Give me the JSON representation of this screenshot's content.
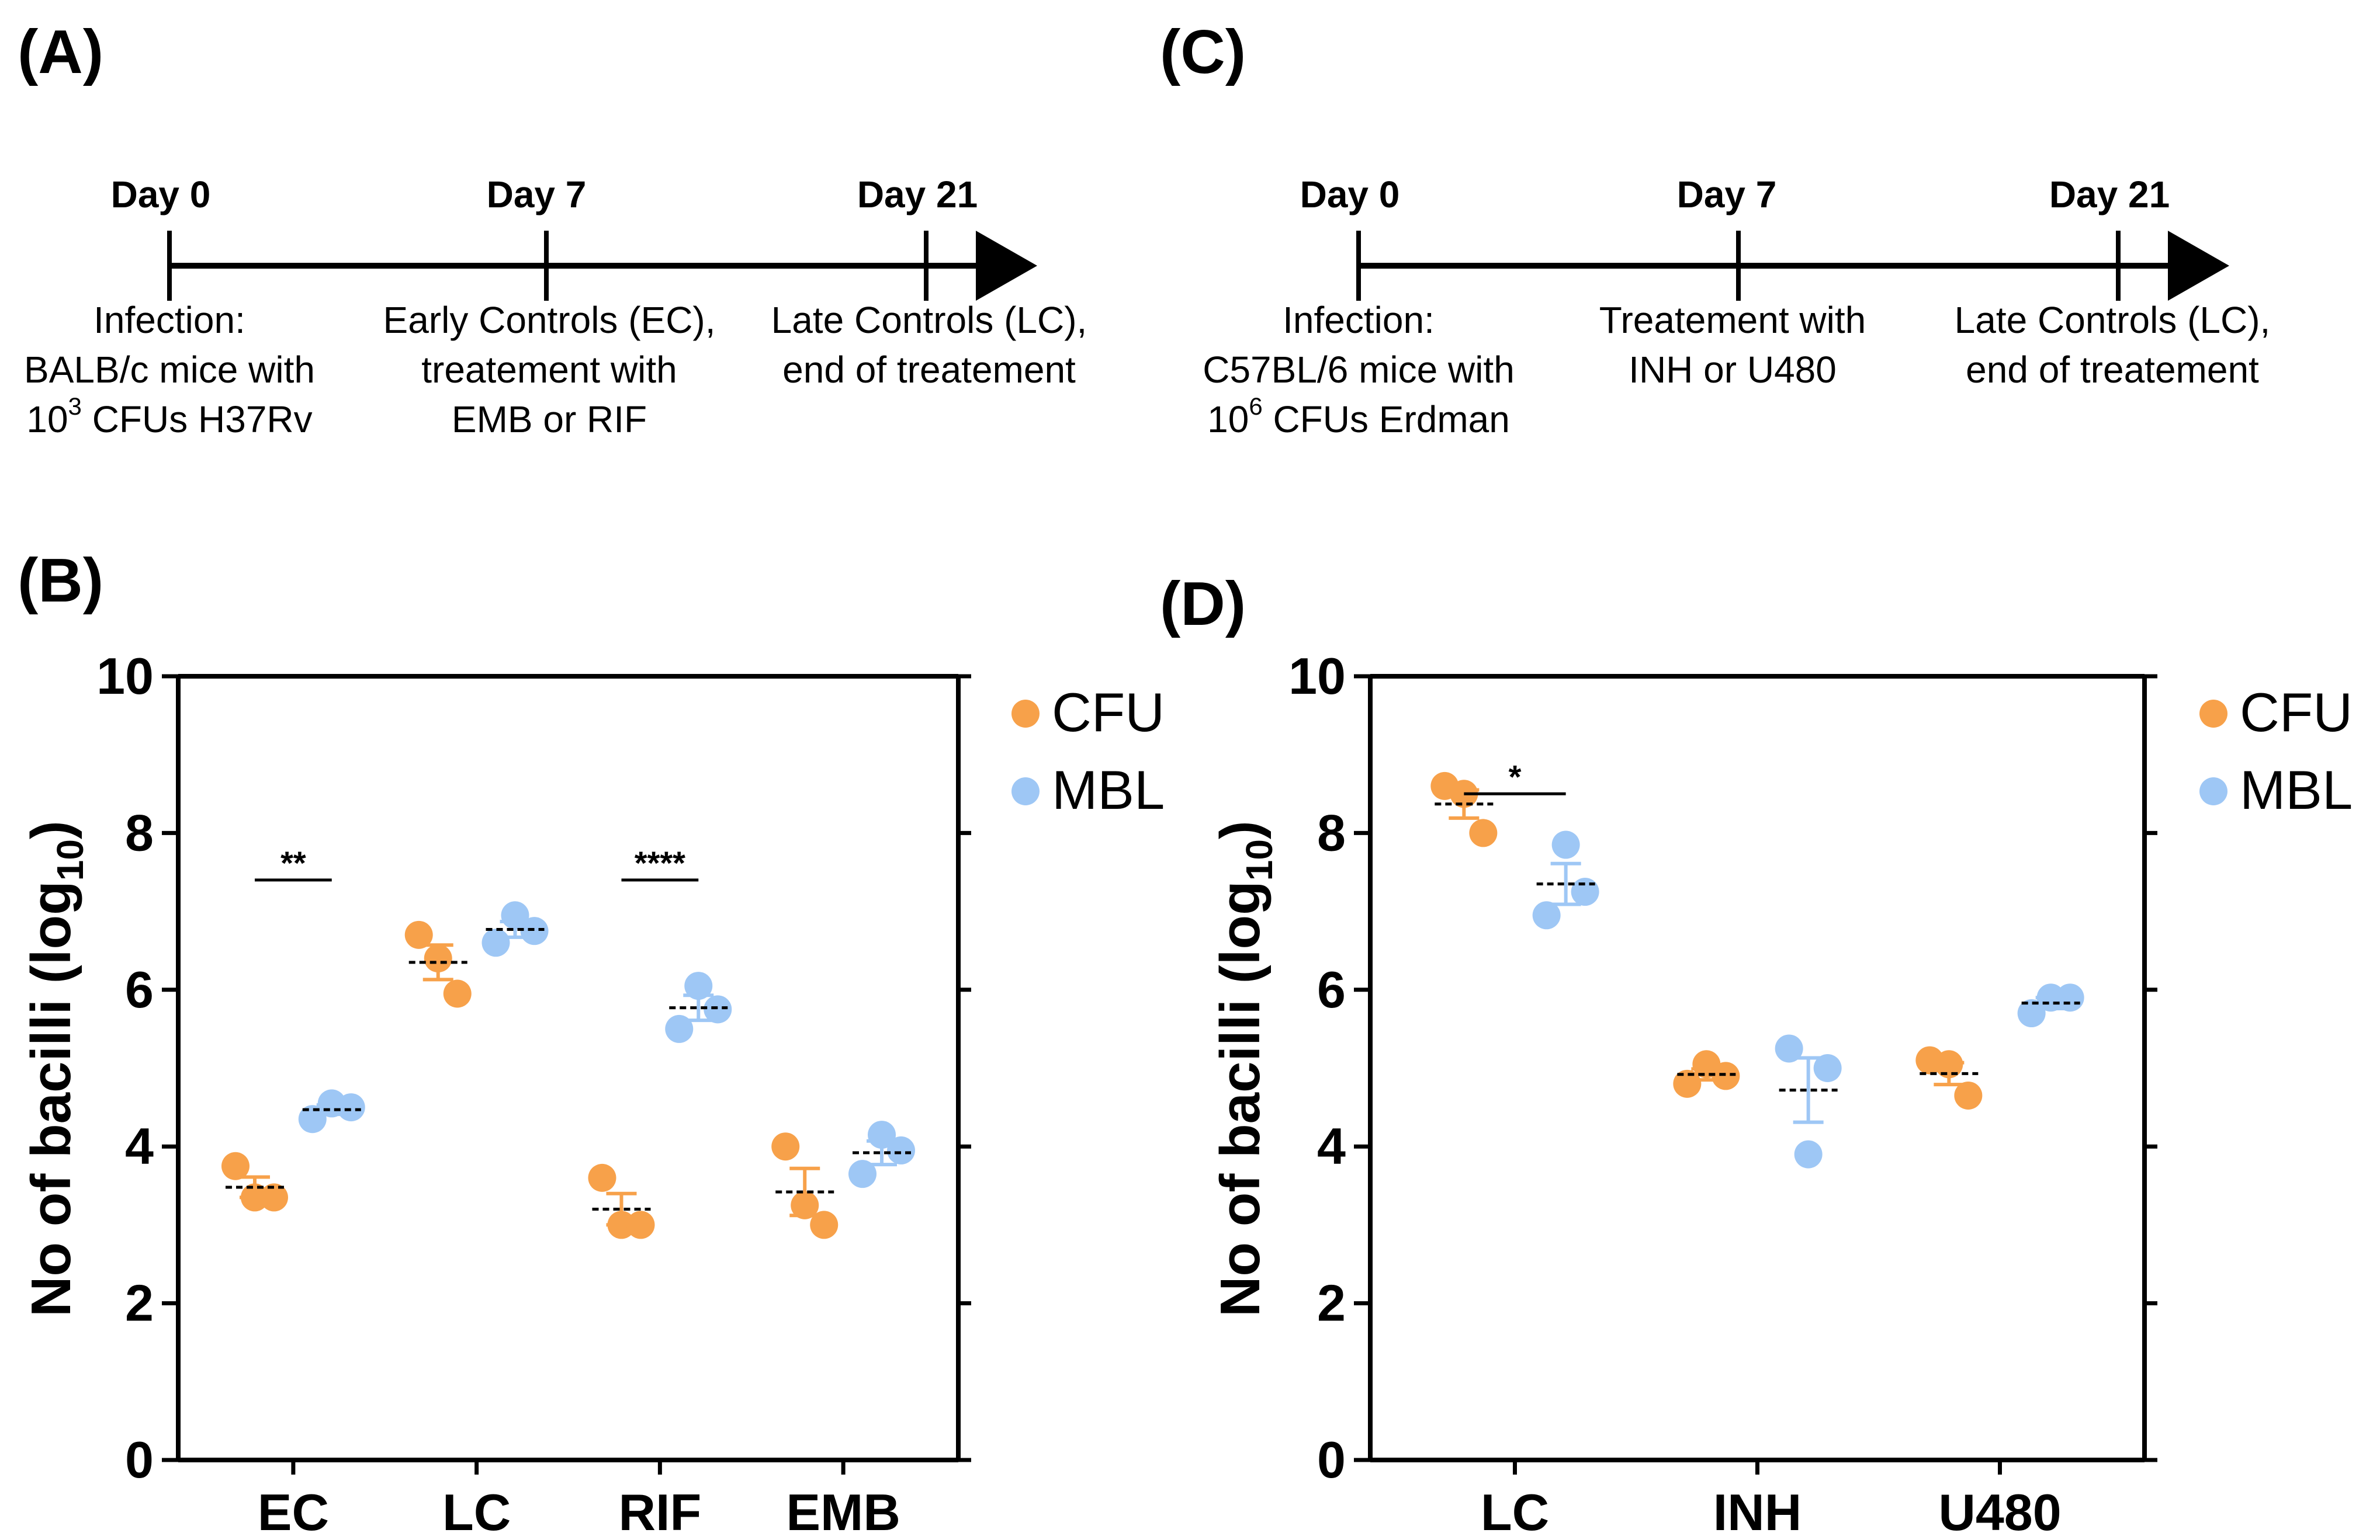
{
  "colors": {
    "cfu": "#f7a14a",
    "mbl": "#9ec7f5",
    "axis": "#000000"
  },
  "panels": {
    "A": "(A)",
    "B": "(B)",
    "C": "(C)",
    "D": "(D)"
  },
  "timelineA": {
    "days": [
      "Day 0",
      "Day 7",
      "Day 21"
    ],
    "captions": [
      [
        "Infection:",
        "BALB/c mice with",
        "10",
        "3",
        " CFUs H37Rv"
      ],
      [
        "Early Controls (EC),",
        "treatement with",
        "EMB or RIF"
      ],
      [
        "Late Controls (LC),",
        "end of treatement"
      ]
    ]
  },
  "timelineC": {
    "days": [
      "Day 0",
      "Day 7",
      "Day 21"
    ],
    "captions": [
      [
        "Infection:",
        "C57BL/6 mice with",
        "10",
        "6",
        " CFUs Erdman"
      ],
      [
        "Treatement with",
        "INH or U480"
      ],
      [
        "Late Controls (LC),",
        "end of treatement"
      ]
    ]
  },
  "legend": {
    "cfu": "CFU",
    "mbl": "MBL"
  },
  "chart_data": [
    {
      "type": "scatter",
      "panel": "B",
      "ylabel_main": "No of bacilli (log",
      "ylabel_sub": "10",
      "ylabel_end": ")",
      "ylim": [
        0,
        10
      ],
      "yticks": [
        "0",
        "2",
        "4",
        "6",
        "8",
        "10"
      ],
      "categories": [
        "EC",
        "LC",
        "RIF",
        "EMB"
      ],
      "series": [
        {
          "name": "CFU",
          "points": [
            [
              3.75,
              3.35,
              3.35
            ],
            [
              6.7,
              6.4,
              5.95
            ],
            [
              3.6,
              3.0,
              3.0
            ],
            [
              4.0,
              3.25,
              3.0
            ]
          ],
          "mean": [
            3.48,
            6.35,
            3.2,
            3.42
          ],
          "sem": [
            0.13,
            0.22,
            0.2,
            0.3
          ]
        },
        {
          "name": "MBL",
          "points": [
            [
              4.35,
              4.55,
              4.5
            ],
            [
              6.6,
              6.95,
              6.75
            ],
            [
              5.5,
              6.05,
              5.75
            ],
            [
              3.65,
              4.15,
              3.95
            ]
          ],
          "mean": [
            4.47,
            6.77,
            5.77,
            3.92
          ],
          "sem": [
            0.06,
            0.1,
            0.16,
            0.15
          ]
        }
      ],
      "significance": [
        {
          "category": "EC",
          "label": "**",
          "y": 7.4
        },
        {
          "category": "RIF",
          "label": "****",
          "y": 7.4
        }
      ]
    },
    {
      "type": "scatter",
      "panel": "D",
      "ylabel_main": "No of bacilli (log",
      "ylabel_sub": "10",
      "ylabel_end": ")",
      "ylim": [
        0,
        10
      ],
      "yticks": [
        "0",
        "2",
        "4",
        "6",
        "8",
        "10"
      ],
      "categories": [
        "LC",
        "INH",
        "U480"
      ],
      "series": [
        {
          "name": "CFU",
          "points": [
            [
              8.6,
              8.5,
              8.0
            ],
            [
              4.8,
              5.05,
              4.9
            ],
            [
              5.1,
              5.05,
              4.65
            ]
          ],
          "mean": [
            8.37,
            4.92,
            4.93
          ],
          "sem": [
            0.18,
            0.07,
            0.14
          ]
        },
        {
          "name": "MBL",
          "points": [
            [
              6.95,
              7.85,
              7.25
            ],
            [
              5.25,
              3.9,
              5.0
            ],
            [
              5.7,
              5.9,
              5.9
            ]
          ],
          "mean": [
            7.35,
            4.72,
            5.83
          ],
          "sem": [
            0.26,
            0.41,
            0.07
          ]
        }
      ],
      "significance": [
        {
          "category": "LC",
          "label": "*",
          "y": 8.5
        }
      ]
    }
  ]
}
